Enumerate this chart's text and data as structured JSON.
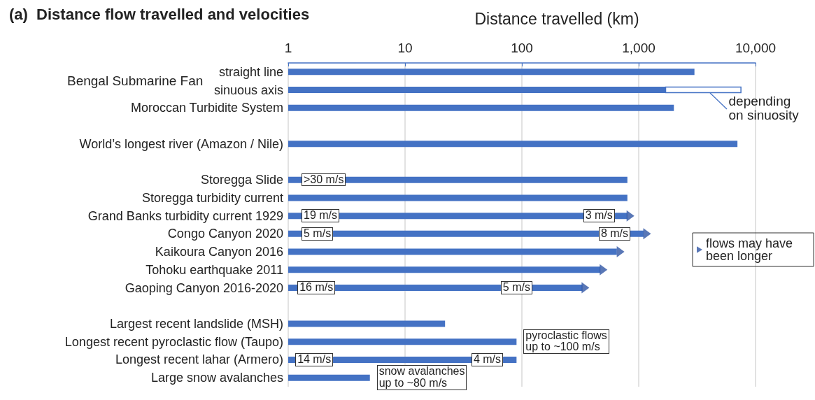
{
  "chart_data": {
    "type": "bar",
    "orientation": "horizontal",
    "title": "(a)  Distance flow travelled and velocities",
    "xlabel": "Distance travelled (km)",
    "categories": [
      "straight line",
      "sinuous axis",
      "Moroccan Turbidite System",
      null,
      "World’s longest river (Amazon / Nile)",
      null,
      "Storegga Slide",
      "Storegga turbidity current",
      "Grand Banks turbidity current 1929",
      "Congo Canyon 2020",
      "Kaikoura Canyon 2016",
      "Tohoku earthquake 2011",
      "Gaoping Canyon 2016-2020",
      null,
      "Largest recent landslide (MSH)",
      "Longest recent pyroclastic flow (Taupo)",
      "Longest recent lahar (Armero)",
      "Large snow avalanches"
    ],
    "series": [
      {
        "color": "#4472c4",
        "values": [
          3000,
          1700,
          2000,
          null,
          7000,
          null,
          800,
          800,
          800,
          1100,
          650,
          470,
          330,
          null,
          22,
          90,
          90,
          5
        ]
      },
      {
        "color": "#ffffff",
        "base": [
          null,
          1700,
          null,
          null,
          null,
          null,
          null,
          null,
          null,
          null,
          null,
          null,
          null,
          null,
          null,
          null,
          null,
          null
        ],
        "values": [
          null,
          5800,
          null,
          null,
          null,
          null,
          null,
          null,
          null,
          null,
          null,
          null,
          null,
          null,
          null,
          null,
          null,
          null
        ]
      },
      {
        "type": "scatter",
        "name": "flows may have been longer",
        "color": "#2f55a4",
        "marker": "triangle",
        "values": [
          null,
          null,
          null,
          null,
          null,
          null,
          null,
          null,
          850,
          1180,
          700,
          500,
          350,
          null,
          null,
          null,
          null,
          null
        ]
      }
    ],
    "xlim": [
      1,
      10000
    ],
    "xticks": [
      1,
      10,
      100,
      {
        "value": 1000,
        "label": "1,000"
      },
      {
        "value": 10000,
        "label": "10,000"
      }
    ],
    "log": "x",
    "grid": "x",
    "legend": "right",
    "annotations": [
      "Bengal Submarine Fan",
      {
        "text": "depending\non sinuosity",
        "x": 4000,
        "y": "sinuous axis"
      },
      {
        "text": ">30 m/s",
        "x": 1.3,
        "y": "Storegga Slide"
      },
      {
        "text": "19 m/s",
        "x": 1.3,
        "y": "Grand Banks turbidity current 1929"
      },
      {
        "text": "3 m/s",
        "x": 335,
        "y": "Grand Banks turbidity current 1929"
      },
      {
        "text": "5 m/s",
        "x": 1.3,
        "y": "Congo Canyon 2020"
      },
      {
        "text": "8 m/s",
        "x": 455,
        "y": "Congo Canyon 2020"
      },
      {
        "text": "16 m/s",
        "x": 1.2,
        "y": "Gaoping Canyon 2016-2020"
      },
      {
        "text": "5 m/s",
        "x": 66,
        "y": "Gaoping Canyon 2016-2020"
      },
      {
        "text": "pyroclastic flows\nup to ~100 m/s",
        "x": 90,
        "y": "Longest recent pyroclastic flow (Taupo)"
      },
      {
        "text": "14 m/s",
        "x": 1.15,
        "y": "Longest recent lahar (Armero)"
      },
      {
        "text": "4 m/s",
        "x": 37,
        "y": "Longest recent lahar (Armero)"
      },
      {
        "text": "snow avalanches\nup to ~80 m/s",
        "x": 5,
        "y": "Large snow avalanches"
      }
    ]
  }
}
